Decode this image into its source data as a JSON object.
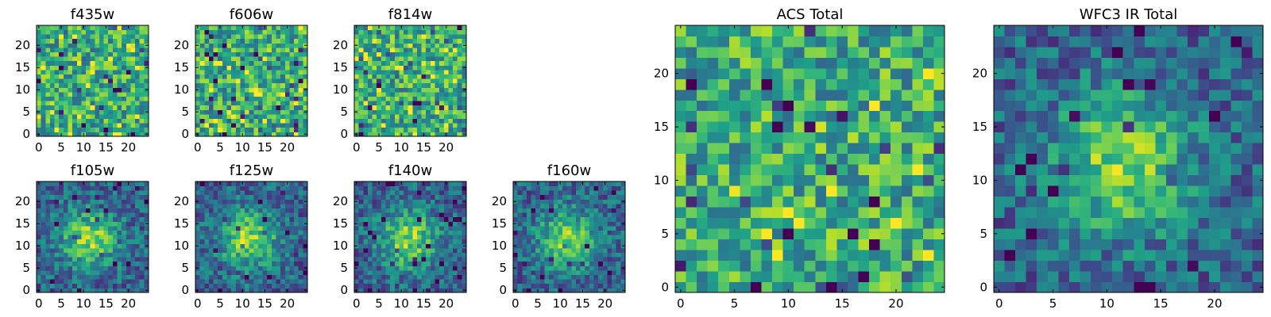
{
  "chart_data": [
    {
      "type": "heatmap",
      "title": "f435w",
      "grid_size": 25,
      "x_ticks": [
        "0",
        "5",
        "10",
        "15",
        "20"
      ],
      "y_ticks": [
        "0",
        "5",
        "10",
        "15",
        "20"
      ],
      "pattern": "noise",
      "seed": 11,
      "colormap": "viridis"
    },
    {
      "type": "heatmap",
      "title": "f606w",
      "grid_size": 25,
      "x_ticks": [
        "0",
        "5",
        "10",
        "15",
        "20"
      ],
      "y_ticks": [
        "0",
        "5",
        "10",
        "15",
        "20"
      ],
      "pattern": "noise",
      "seed": 23,
      "colormap": "viridis"
    },
    {
      "type": "heatmap",
      "title": "f814w",
      "grid_size": 25,
      "x_ticks": [
        "0",
        "5",
        "10",
        "15",
        "20"
      ],
      "y_ticks": [
        "0",
        "5",
        "10",
        "15",
        "20"
      ],
      "pattern": "noise",
      "seed": 37,
      "colormap": "viridis"
    },
    {
      "type": "heatmap",
      "title": "f105w",
      "grid_size": 25,
      "x_ticks": [
        "0",
        "5",
        "10",
        "15",
        "20"
      ],
      "y_ticks": [
        "0",
        "5",
        "10",
        "15",
        "20"
      ],
      "pattern": "blob",
      "seed": 41,
      "colormap": "viridis"
    },
    {
      "type": "heatmap",
      "title": "f125w",
      "grid_size": 25,
      "x_ticks": [
        "0",
        "5",
        "10",
        "15",
        "20"
      ],
      "y_ticks": [
        "0",
        "5",
        "10",
        "15",
        "20"
      ],
      "pattern": "blob",
      "seed": 53,
      "colormap": "viridis"
    },
    {
      "type": "heatmap",
      "title": "f140w",
      "grid_size": 25,
      "x_ticks": [
        "0",
        "5",
        "10",
        "15",
        "20"
      ],
      "y_ticks": [
        "0",
        "5",
        "10",
        "15",
        "20"
      ],
      "pattern": "blob",
      "seed": 67,
      "colormap": "viridis"
    },
    {
      "type": "heatmap",
      "title": "f160w",
      "grid_size": 25,
      "x_ticks": [
        "0",
        "5",
        "10",
        "15",
        "20"
      ],
      "y_ticks": [
        "0",
        "5",
        "10",
        "15",
        "20"
      ],
      "pattern": "blob",
      "seed": 79,
      "colormap": "viridis"
    },
    {
      "type": "heatmap",
      "title": "ACS Total",
      "grid_size": 25,
      "x_ticks": [
        "0",
        "5",
        "10",
        "15",
        "20"
      ],
      "y_ticks": [
        "0",
        "5",
        "10",
        "15",
        "20"
      ],
      "pattern": "noise",
      "seed": 83,
      "colormap": "viridis"
    },
    {
      "type": "heatmap",
      "title": "WFC3 IR Total",
      "grid_size": 25,
      "x_ticks": [
        "0",
        "5",
        "10",
        "15",
        "20"
      ],
      "y_ticks": [
        "0",
        "5",
        "10",
        "15",
        "20"
      ],
      "pattern": "blob",
      "seed": 97,
      "colormap": "viridis"
    }
  ]
}
